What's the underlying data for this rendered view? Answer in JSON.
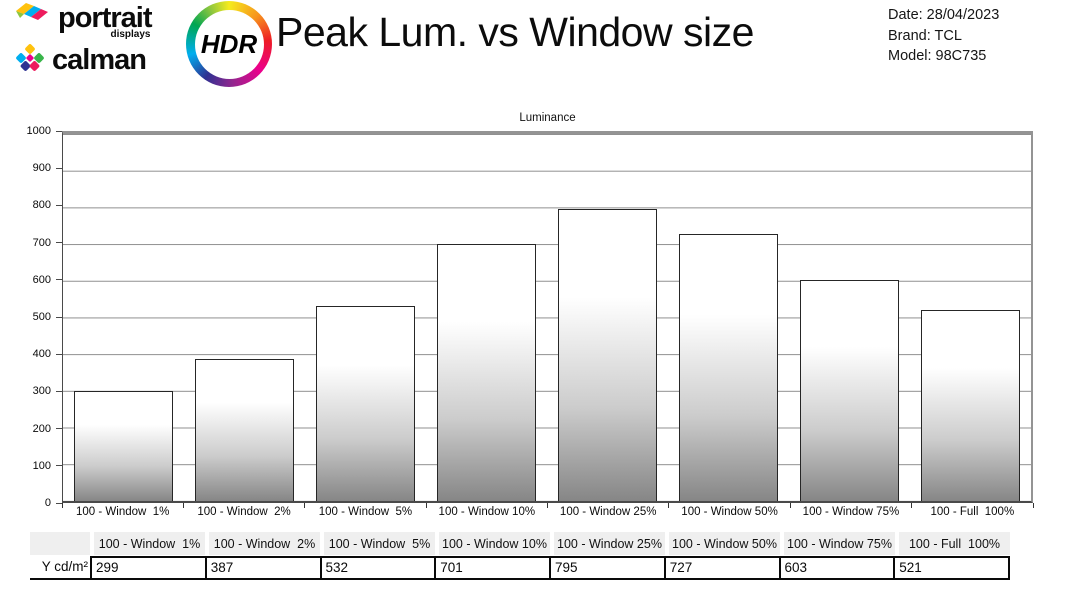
{
  "header": {
    "portrait_logo": {
      "line1": "portrait",
      "line2": "displays"
    },
    "calman_logo": {
      "text": "calman"
    },
    "hdr_badge": "HDR",
    "title": "Peak Lum. vs Window size",
    "meta": {
      "date": "Date: 28/04/2023",
      "brand": "Brand: TCL",
      "model": "Model: 98C735"
    }
  },
  "chart_data": {
    "type": "bar",
    "title": "Luminance",
    "categories": [
      "100 - Window  1%",
      "100 - Window  2%",
      "100 - Window  5%",
      "100 - Window 10%",
      "100 - Window 25%",
      "100 - Window 50%",
      "100 - Window 75%",
      "100 - Full  100%"
    ],
    "values": [
      299,
      387,
      532,
      701,
      795,
      727,
      603,
      521
    ],
    "xlabel": "",
    "ylabel": "",
    "ylim": [
      0,
      1000
    ],
    "ytick_step": 100,
    "grid": true,
    "legend": false,
    "grid_color": "#8f8f8f",
    "bar_gradient_top": "#ffffff",
    "bar_gradient_bottom": "#868686",
    "bar_border_color": "#262626"
  },
  "table": {
    "row_header": "Y cd/m²",
    "columns": [
      "100 - Window  1%",
      "100 - Window  2%",
      "100 - Window  5%",
      "100 - Window 10%",
      "100 - Window 25%",
      "100 - Window 50%",
      "100 - Window 75%",
      "100 - Full  100%"
    ],
    "values": [
      "299",
      "387",
      "532",
      "701",
      "795",
      "727",
      "603",
      "521"
    ],
    "header_bg": "#efefef"
  }
}
